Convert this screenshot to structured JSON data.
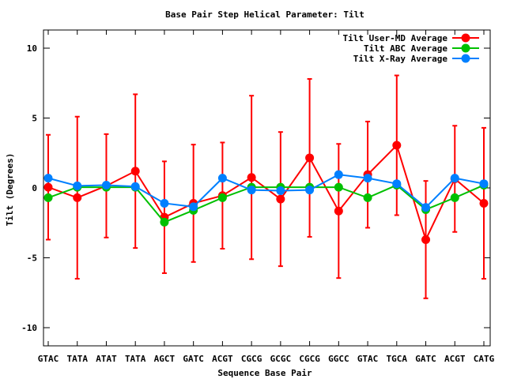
{
  "chart_data": {
    "type": "line",
    "title": "Base Pair Step Helical Parameter: Tilt",
    "xlabel": "Sequence Base Pair",
    "ylabel": "Tilt (Degrees)",
    "categories": [
      "GTAC",
      "TATA",
      "ATAT",
      "TATA",
      "AGCT",
      "GATC",
      "ACGT",
      "CGCG",
      "GCGC",
      "CGCG",
      "GGCC",
      "GTAC",
      "TGCA",
      "GATC",
      "ACGT",
      "CATG"
    ],
    "ylim": [
      -11.3,
      11.3
    ],
    "yticks": [
      -10,
      -5,
      0,
      5,
      10
    ],
    "grid": false,
    "legend": "top-right",
    "series": [
      {
        "name": "Tilt User-MD Average",
        "color": "#ff0000",
        "values": [
          0.05,
          -0.7,
          0.15,
          1.2,
          -2.1,
          -1.1,
          -0.55,
          0.75,
          -0.8,
          2.15,
          -1.65,
          0.95,
          3.05,
          -3.7,
          0.65,
          -1.1
        ],
        "errors": [
          3.75,
          5.8,
          3.7,
          5.5,
          4.0,
          4.2,
          3.8,
          5.85,
          4.8,
          5.65,
          4.8,
          3.8,
          5.0,
          4.2,
          3.8,
          5.4
        ]
      },
      {
        "name": "Tilt ABC Average",
        "color": "#00c000",
        "values": [
          -0.7,
          0.05,
          0.05,
          0.05,
          -2.45,
          -1.6,
          -0.7,
          0.05,
          0.05,
          0.05,
          0.05,
          -0.7,
          0.2,
          -1.55,
          -0.7,
          0.2
        ]
      },
      {
        "name": "Tilt X-Ray Average",
        "color": "#0080ff",
        "values": [
          0.7,
          0.15,
          0.2,
          0.1,
          -1.1,
          -1.35,
          0.7,
          -0.15,
          -0.2,
          -0.15,
          0.95,
          0.7,
          0.3,
          -1.4,
          0.7,
          0.3
        ]
      }
    ]
  }
}
